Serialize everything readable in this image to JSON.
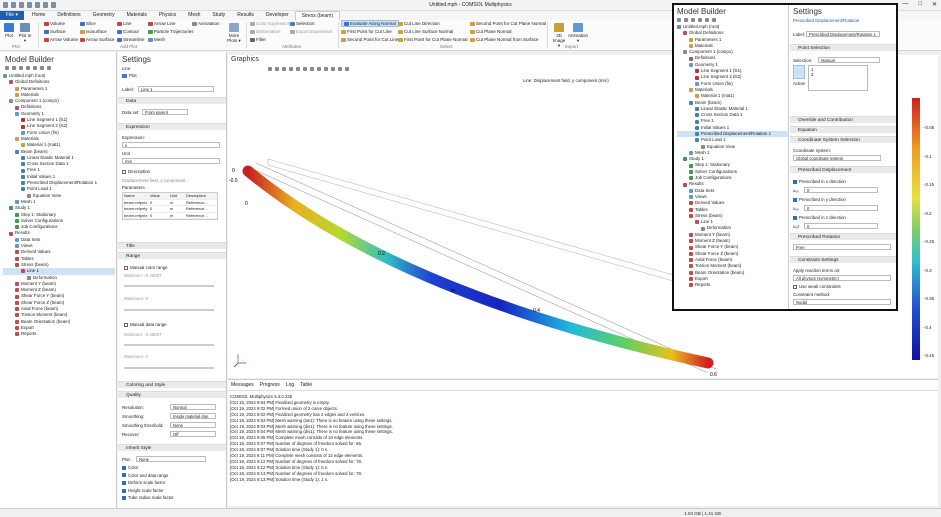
{
  "window": {
    "title": "Untitled.mph - COMSOL Multiphysics",
    "min": "—",
    "max": "□",
    "close": "✕"
  },
  "tabs": [
    "File ▾",
    "Home",
    "Definitions",
    "Geometry",
    "Materials",
    "Physics",
    "Mesh",
    "Study",
    "Results",
    "Developer",
    "Stress (beam)"
  ],
  "ribbon": {
    "plot": "Plot",
    "plot_in": "Plot In ▾",
    "volume": "Volume",
    "slice": "Slice",
    "line": "Line",
    "arrow_line": "Arrow Line",
    "annotation": "Annotation",
    "surface": "Surface",
    "isosurface": "Isosurface",
    "contour": "Contour",
    "particle_traj": "Particle Trajectories",
    "arrow_volume": "Arrow Volume",
    "arrow_surface": "Arrow Surface",
    "streamline": "Streamline",
    "mesh": "Mesh",
    "more_plots": "More Plots ▾",
    "color_expression": "Color Expression",
    "deformation": "Deformation",
    "filter": "Filter",
    "selection": "Selection",
    "export_expression": "Export Expression",
    "evaluate_along_normal": "Evaluate Along Normal",
    "cut_line_direction": "Cut Line Direction",
    "second_point": "Second Point for Cut Plane Normal",
    "first_point_line": "First Point for Cut Line",
    "cut_line_surface_normal": "Cut Line Surface Normal",
    "cut_plane_normal": "Cut Plane Normal",
    "second_point_line": "Second Point for Cut Line",
    "first_point_plane": "First Point for Cut Plane Normal",
    "cut_plane_normal_surface": "Cut Plane Normal from Surface",
    "image": "3D Image ▾",
    "animation": "Animation ▾",
    "grp_plot": "Plot",
    "grp_add_plot": "Add Plot",
    "grp_attributes": "Attributes",
    "grp_select": "Select",
    "grp_export": "Export"
  },
  "model_builder": {
    "title": "Model Builder",
    "items": [
      {
        "label": "Untitled.mph (root)",
        "indent": 0,
        "color": "#6b8fb5"
      },
      {
        "label": "Global Definitions",
        "indent": 1,
        "color": "#b0506b"
      },
      {
        "label": "Parameters 1",
        "indent": 2,
        "color": "#c9a034"
      },
      {
        "label": "Materials",
        "indent": 2,
        "color": "#d69b3f"
      },
      {
        "label": "Component 1 (comp1)",
        "indent": 1,
        "color": "#6b8fb5"
      },
      {
        "label": "Definitions",
        "indent": 2,
        "color": "#b0506b"
      },
      {
        "label": "Geometry 1",
        "indent": 2,
        "color": "#5c9ad6"
      },
      {
        "label": "Line Segment 1 (ls1)",
        "indent": 3,
        "color": "#bb3030"
      },
      {
        "label": "Line Segment 2 (ls2)",
        "indent": 3,
        "color": "#bb3030"
      },
      {
        "label": "Form Union (fin)",
        "indent": 3,
        "color": "#5c9ad6"
      },
      {
        "label": "Materials",
        "indent": 2,
        "color": "#d69b3f"
      },
      {
        "label": "Material 1 (mat1)",
        "indent": 3,
        "color": "#d69b3f"
      },
      {
        "label": "Beam (beam)",
        "indent": 2,
        "color": "#4a7fb0"
      },
      {
        "label": "Linear Elastic Material 1",
        "indent": 3,
        "color": "#4a7fb0"
      },
      {
        "label": "Cross Section Data 1",
        "indent": 3,
        "color": "#4a7fb0"
      },
      {
        "label": "Free 1",
        "indent": 3,
        "color": "#4a7fb0"
      },
      {
        "label": "Initial Values 1",
        "indent": 3,
        "color": "#4a7fb0"
      },
      {
        "label": "Prescribed Displacement/Rotation 1",
        "indent": 3,
        "color": "#4a7fb0"
      },
      {
        "label": "Point Load 1",
        "indent": 3,
        "color": "#4a7fb0"
      },
      {
        "label": "Equation View",
        "indent": 4,
        "color": "#888888"
      },
      {
        "label": "Mesh 1",
        "indent": 2,
        "color": "#5c9ad6"
      },
      {
        "label": "Study 1",
        "indent": 1,
        "color": "#3f9a4f"
      },
      {
        "label": "Step 1: Stationary",
        "indent": 2,
        "color": "#3f9a4f"
      },
      {
        "label": "Solver Configurations",
        "indent": 2,
        "color": "#3f9a4f"
      },
      {
        "label": "Job Configurations",
        "indent": 2,
        "color": "#3f9a4f"
      },
      {
        "label": "Results",
        "indent": 1,
        "color": "#c04b4b"
      },
      {
        "label": "Data Sets",
        "indent": 2,
        "color": "#5c9ad6"
      },
      {
        "label": "Views",
        "indent": 2,
        "color": "#5c9ad6"
      },
      {
        "label": "Derived Values",
        "indent": 2,
        "color": "#c04b4b"
      },
      {
        "label": "Tables",
        "indent": 2,
        "color": "#c04b4b"
      },
      {
        "label": "Stress (beam)",
        "indent": 2,
        "color": "#c04b4b"
      },
      {
        "label": "Line 1",
        "indent": 3,
        "color": "#c04b4b",
        "selected": true
      },
      {
        "label": "Deformation",
        "indent": 4,
        "color": "#888888"
      },
      {
        "label": "Moment Y (beam)",
        "indent": 2,
        "color": "#c04b4b"
      },
      {
        "label": "Moment Z (beam)",
        "indent": 2,
        "color": "#c04b4b"
      },
      {
        "label": "Shear Force Y (beam)",
        "indent": 2,
        "color": "#c04b4b"
      },
      {
        "label": "Shear Force Z (beam)",
        "indent": 2,
        "color": "#c04b4b"
      },
      {
        "label": "Axial Force (beam)",
        "indent": 2,
        "color": "#c04b4b"
      },
      {
        "label": "Torsion Moment (beam)",
        "indent": 2,
        "color": "#c04b4b"
      },
      {
        "label": "Beam Orientation (beam)",
        "indent": 2,
        "color": "#c04b4b"
      },
      {
        "label": "Export",
        "indent": 2,
        "color": "#c04b4b"
      },
      {
        "label": "Reports",
        "indent": 2,
        "color": "#c04b4b"
      }
    ]
  },
  "settings": {
    "title": "Settings",
    "subtitle": "Line",
    "plot_btn": "Plot",
    "label_lbl": "Label:",
    "label_val": "Line 1",
    "data_sec": "Data",
    "dataset_lbl": "Data set:",
    "dataset_val": "From parent",
    "expression_sec": "Expression",
    "expression_lbl": "Expression:",
    "expression_val": "v",
    "unit_lbl": "Unit",
    "unit_val": "mm",
    "description_lbl": "Description",
    "description_val": "Displacement field, y component",
    "parameters_lbl": "Parameters",
    "param_headers": [
      "Name",
      "Value",
      "Unit",
      "Description"
    ],
    "param_rows": [
      [
        "beam.refpntx",
        "0",
        "m",
        "Reference..."
      ],
      [
        "beam.refpnty",
        "0",
        "m",
        "Reference..."
      ],
      [
        "beam.refpntz",
        "0",
        "m",
        "Reference..."
      ]
    ],
    "title_sec": "Title",
    "range_sec": "Range",
    "manual_color": "Manual color range",
    "min_lbl": "Minimum:",
    "min_val": "-0.45937",
    "max_lbl": "Maximum:",
    "max_val": "0",
    "manual_data": "Manual data range",
    "min2_val": "-0.45937",
    "max2_val": "0",
    "coloring_sec": "Coloring and Style",
    "quality_sec": "Quality",
    "resolution_lbl": "Resolution:",
    "resolution_val": "Normal",
    "smoothing_lbl": "Smoothing:",
    "smoothing_val": "Inside material don",
    "smooth_thr_lbl": "Smoothing threshold:",
    "smooth_thr_val": "None",
    "recover_lbl": "Recover:",
    "recover_val": "Off",
    "inherit_sec": "Inherit Style",
    "plot_lbl": "Plot:",
    "plot_val": "None",
    "inherit_items": [
      "Color",
      "Color and data range",
      "Deform scale factor",
      "Height scale factor",
      "Tube radius scale factor"
    ]
  },
  "graphics": {
    "title": "Graphics",
    "plot_title": "Line: Displacement field, y component (mm)",
    "axis_labels": [
      "0",
      "0.2",
      "0.4",
      "0.6"
    ],
    "axis_neg": "-0.5",
    "unit_m": "m",
    "colorbar_ticks": [
      "-0.05",
      "-0.1",
      "-0.15",
      "-0.2",
      "-0.25",
      "-0.3",
      "-0.35",
      "-0.4",
      "-0.45"
    ]
  },
  "messages": {
    "tabs": [
      "Messages",
      "Progress",
      "Log",
      "Table"
    ],
    "lines": [
      "COMSOL Multiphysics 5.4.0.225",
      "[Oct 15, 2024 9:54 PM] Finalized geometry is empty.",
      "[Oct 19, 2024 9:02 PM] Formed union of 2 curve objects.",
      "[Oct 19, 2024 9:02 PM] Finalized geometry has 2 edges and 3 vertices.",
      "[Oct 19, 2024 9:03 PM] Mesh warning (sw1): There is no feature using these settings.",
      "[Oct 19, 2024 9:03 PM] Mesh warning (dis1): There is no feature using these settings.",
      "[Oct 19, 2024 9:04 PM] Mesh warning (dis1): There is no feature using these settings.",
      "[Oct 19, 2024 9:06 PM] Complete mesh consists of 10 edge elements.",
      "[Oct 19, 2024 9:07 PM] Number of degrees of freedom solved for: 66.",
      "[Oct 19, 2024 9:07 PM] Solution time (Study 1): 0 s.",
      "[Oct 19, 2024 9:11 PM] Complete mesh consists of 12 edge elements.",
      "[Oct 19, 2024 9:12 PM] Number of degrees of freedom solved for: 78.",
      "[Oct 19, 2024 9:12 PM] Solution time (Study 1): 0 s.",
      "[Oct 19, 2024 9:13 PM] Number of degrees of freedom solved for: 78.",
      "[Oct 19, 2024 9:13 PM] Solution time (Study 1): 1 s."
    ]
  },
  "status": {
    "memory": "1.04 GB | 1.41 GB"
  },
  "overlay": {
    "mb_title": "Model Builder",
    "settings_title": "Settings",
    "settings_subtitle": "Prescribed Displacement/Rotation",
    "label_lbl": "Label:",
    "label_val": "Prescribed Displacement/Rotation 1",
    "point_sel": "Point Selection",
    "selection_lbl": "Selection:",
    "selection_val": "Manual",
    "sel_items": [
      "1",
      "3"
    ],
    "active_lbl": "Active",
    "override": "Override and Contribution",
    "equation": "Equation",
    "coord_sec": "Coordinate System Selection",
    "coord_lbl": "Coordinate system:",
    "coord_val": "Global coordinate system",
    "pres_disp": "Prescribed Displacement",
    "px": "Prescribed in x direction",
    "ux": "u₀ₓ",
    "ux_val": "0",
    "py": "Prescribed in y direction",
    "uy": "u₀ᵧ",
    "uy_val": "0",
    "pz": "Prescribed in z direction",
    "uz": "u₀z",
    "uz_val": "0",
    "pres_rot": "Prescribed Rotation",
    "rot_val": "Free",
    "constraint": "Constraint Settings",
    "apply_lbl": "Apply reaction terms on:",
    "apply_val": "All physics (symmetric)",
    "weak_lbl": "Use weak constraints",
    "method_lbl": "Constraint method:",
    "method_val": "Nodal"
  }
}
